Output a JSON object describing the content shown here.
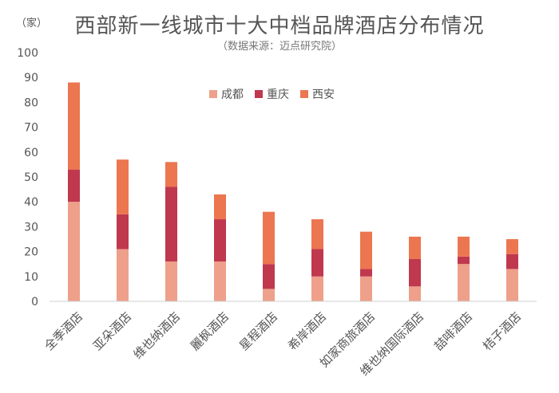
{
  "chart_data": {
    "type": "bar",
    "stacked": true,
    "title": "西部新一线城市十大中档品牌酒店分布情况",
    "subtitle": "（数据来源：迈点研究院）",
    "unit_label": "（家）",
    "categories": [
      "全季酒店",
      "亚朵酒店",
      "维也纳酒店",
      "麗枫酒店",
      "星程酒店",
      "希岸酒店",
      "如家商旅酒店",
      "维也纳国际酒店",
      "喆啡酒店",
      "桔子酒店"
    ],
    "series": [
      {
        "name": "成都",
        "color": "#eea08a",
        "values": [
          40,
          21,
          16,
          16,
          5,
          10,
          10,
          6,
          15,
          13
        ]
      },
      {
        "name": "重庆",
        "color": "#c0384e",
        "values": [
          13,
          14,
          30,
          17,
          10,
          11,
          3,
          11,
          3,
          6
        ]
      },
      {
        "name": "西安",
        "color": "#ec7650",
        "values": [
          35,
          22,
          10,
          10,
          21,
          12,
          15,
          9,
          8,
          6
        ]
      }
    ],
    "ylim": [
      0,
      100
    ],
    "yticks": [
      0,
      10,
      20,
      30,
      40,
      50,
      60,
      70,
      80,
      90,
      100
    ],
    "legend_position": "top-center",
    "grid": false
  }
}
